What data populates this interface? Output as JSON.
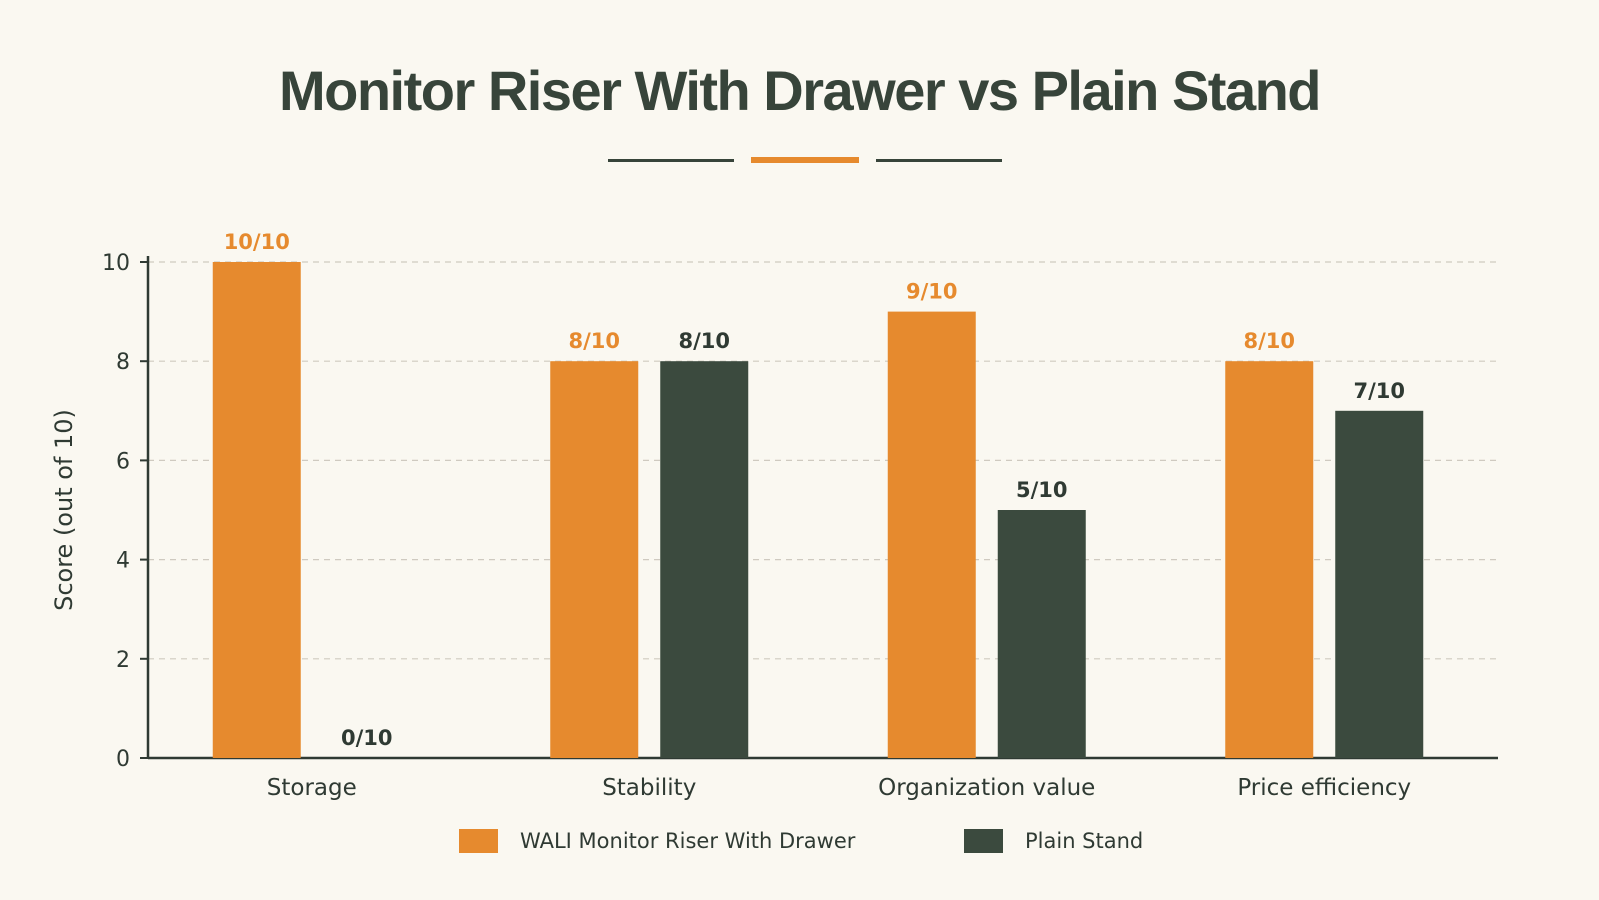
{
  "title": "Monitor Riser With Drawer vs Plain Stand",
  "colors": {
    "background": "#faf8f1",
    "accent": "#e68a2e",
    "dark": "#3b4a3e",
    "text": "#2f3a33",
    "grid": "#cfcac0"
  },
  "legend": [
    {
      "label": "WALI Monitor Riser With Drawer",
      "color": "#e68a2e"
    },
    {
      "label": "Plain Stand",
      "color": "#3b4a3e"
    }
  ],
  "chart_data": {
    "type": "bar",
    "title": "Monitor Riser With Drawer vs Plain Stand",
    "xlabel": "",
    "ylabel": "Score (out of 10)",
    "ylim": [
      0,
      10
    ],
    "yticks": [
      0,
      2,
      4,
      6,
      8,
      10
    ],
    "grid": true,
    "legend_position": "bottom",
    "categories": [
      "Storage",
      "Stability",
      "Organization value",
      "Price efficiency"
    ],
    "series": [
      {
        "name": "WALI Monitor Riser With Drawer",
        "color": "#e68a2e",
        "values": [
          10,
          8,
          9,
          8
        ],
        "labels": [
          "10/10",
          "8/10",
          "9/10",
          "8/10"
        ]
      },
      {
        "name": "Plain Stand",
        "color": "#3b4a3e",
        "values": [
          0,
          8,
          5,
          7
        ],
        "labels": [
          "0/10",
          "8/10",
          "5/10",
          "7/10"
        ]
      }
    ]
  }
}
